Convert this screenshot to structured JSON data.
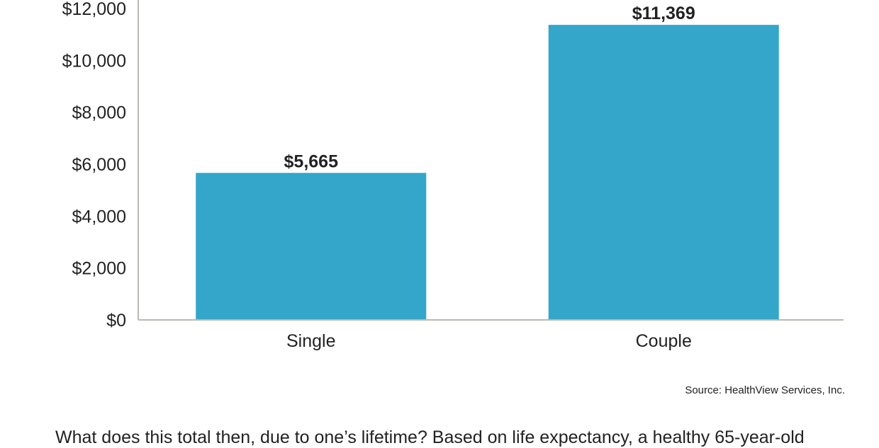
{
  "chart_data": {
    "type": "bar",
    "categories": [
      "Single",
      "Couple"
    ],
    "values": [
      5665,
      11369
    ],
    "value_labels": [
      "$5,665",
      "$11,369"
    ],
    "title": "",
    "xlabel": "",
    "ylabel": "",
    "ylim": [
      0,
      12000
    ],
    "yticks": [
      0,
      2000,
      4000,
      6000,
      8000,
      10000,
      12000
    ],
    "ytick_labels": [
      "$0",
      "$2,000",
      "$4,000",
      "$6,000",
      "$8,000",
      "$10,000",
      "$12,000"
    ],
    "grid": false,
    "legend": "none",
    "bar_color": "#33a6c9",
    "axis_color": "#b9b9b0"
  },
  "footer": {
    "source": "Source: HealthView Services, Inc.",
    "body_text": "What does this total then, due to one’s lifetime? Based on life expectancy, a healthy 65-year-old"
  }
}
